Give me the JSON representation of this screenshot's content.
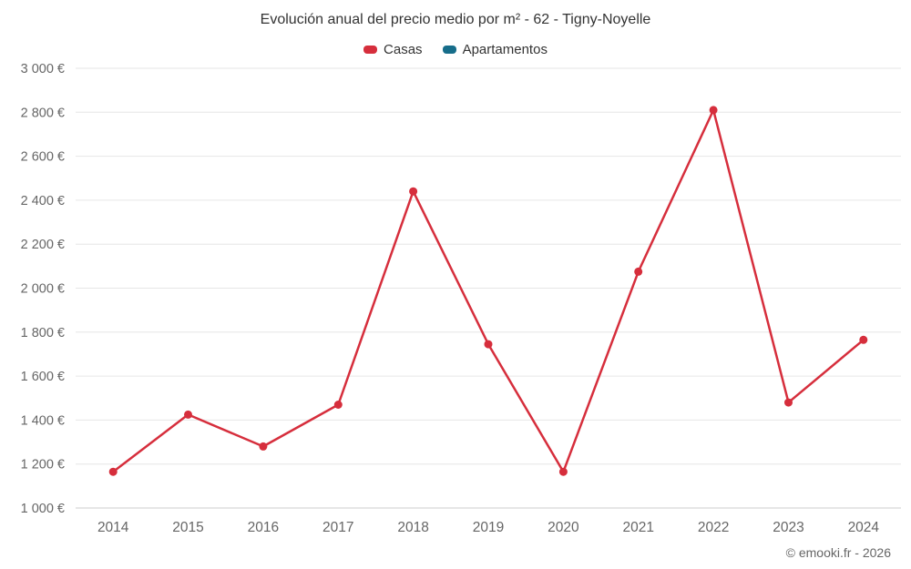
{
  "title": "Evolución anual del precio medio por m² - 62 - Tigny-Noyelle",
  "legend": [
    {
      "label": "Casas",
      "color": "#d62e3c"
    },
    {
      "label": "Apartamentos",
      "color": "#166d8a"
    }
  ],
  "footer": "© emooki.fr - 2026",
  "chart_data": {
    "type": "line",
    "title": "Evolución anual del precio medio por m² - 62 - Tigny-Noyelle",
    "x": [
      2014,
      2015,
      2016,
      2017,
      2018,
      2019,
      2020,
      2021,
      2022,
      2023,
      2024
    ],
    "series": [
      {
        "name": "Casas",
        "color": "#d62e3c",
        "values": [
          1165,
          1425,
          1280,
          1470,
          2440,
          1745,
          1165,
          2075,
          2810,
          1480,
          1765
        ]
      },
      {
        "name": "Apartamentos",
        "color": "#166d8a",
        "values": []
      }
    ],
    "xlabel": "",
    "ylabel": "",
    "ylim": [
      1000,
      3000
    ],
    "ytick_step": 200,
    "ytick_suffix": " €",
    "grid": true,
    "legend_position": "top",
    "colors": {
      "gridline": "#e6e6e6",
      "axis_line": "#cccccc",
      "tick_label": "#666666",
      "title_text": "#333333"
    }
  }
}
